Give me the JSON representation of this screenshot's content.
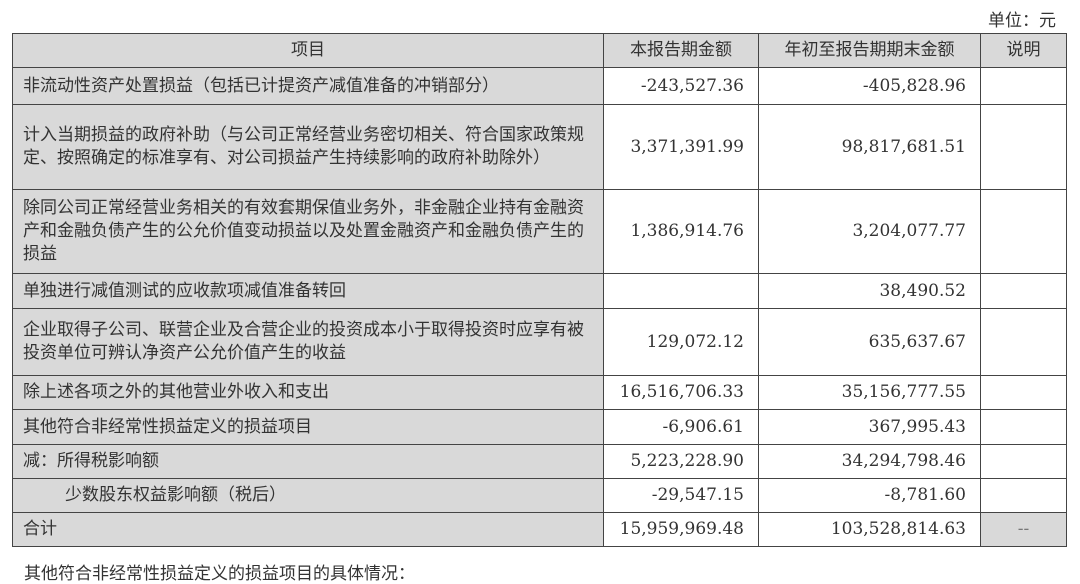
{
  "unit_label": "单位：元",
  "table": {
    "headers": [
      "项目",
      "本报告期金额",
      "年初至报告期期末金额",
      "说明"
    ],
    "rows": [
      {
        "item": "非流动性资产处置损益（包括已计提资产减值准备的冲销部分）",
        "current": "-243,527.36",
        "ytd": "-405,828.96",
        "note": ""
      },
      {
        "item": "计入当期损益的政府补助（与公司正常经营业务密切相关、符合国家政策规定、按照确定的标准享有、对公司损益产生持续影响的政府补助除外）",
        "current": "3,371,391.99",
        "ytd": "98,817,681.51",
        "note": ""
      },
      {
        "item": "除同公司正常经营业务相关的有效套期保值业务外，非金融企业持有金融资产和金融负债产生的公允价值变动损益以及处置金融资产和金融负债产生的损益",
        "current": "1,386,914.76",
        "ytd": "3,204,077.77",
        "note": ""
      },
      {
        "item": "单独进行减值测试的应收款项减值准备转回",
        "current": "",
        "ytd": "38,490.52",
        "note": ""
      },
      {
        "item": "企业取得子公司、联营企业及合营企业的投资成本小于取得投资时应享有被投资单位可辨认净资产公允价值产生的收益",
        "current": "129,072.12",
        "ytd": "635,637.67",
        "note": ""
      },
      {
        "item": "除上述各项之外的其他营业外收入和支出",
        "current": "16,516,706.33",
        "ytd": "35,156,777.55",
        "note": ""
      },
      {
        "item": "其他符合非经常性损益定义的损益项目",
        "current": "-6,906.61",
        "ytd": "367,995.43",
        "note": ""
      },
      {
        "item": "减：所得税影响额",
        "current": "5,223,228.90",
        "ytd": "34,294,798.46",
        "note": ""
      },
      {
        "item": "少数股东权益影响额（税后）",
        "current": "-29,547.15",
        "ytd": "-8,781.60",
        "note": ""
      },
      {
        "item": "合计",
        "current": "15,959,969.48",
        "ytd": "103,528,814.63",
        "note": "--"
      }
    ]
  },
  "footer_text": "其他符合非经常性损益定义的损益项目的具体情况："
}
